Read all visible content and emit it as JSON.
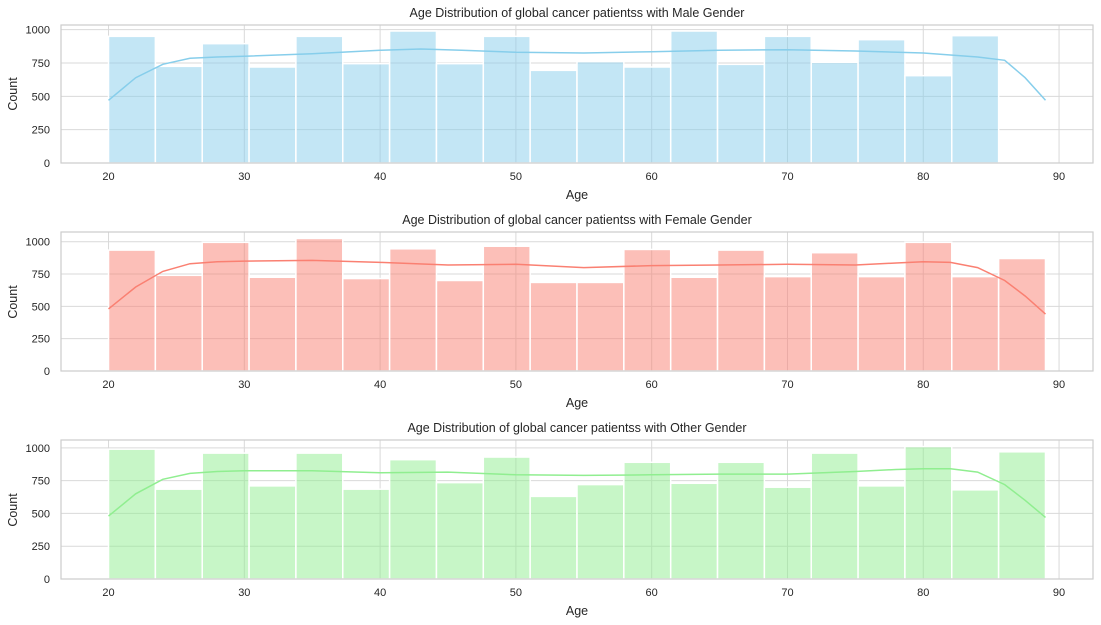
{
  "figure": {
    "background": "#ffffff",
    "grid_color": "#d9d9d9",
    "spine_color": "#cccccc"
  },
  "chart_data": [
    {
      "type": "bar",
      "kind": "histogram with kde",
      "title": "Age Distribution of global cancer patientss with Male Gender",
      "xlabel": "Age",
      "ylabel": "Count",
      "xlim": [
        16.5,
        92.5
      ],
      "ylim": [
        0,
        1035
      ],
      "xticks": [
        20,
        30,
        40,
        50,
        60,
        70,
        80,
        90
      ],
      "yticks": [
        0,
        250,
        500,
        750,
        1000
      ],
      "grid": true,
      "bin_start": 20,
      "bin_width": 3.45,
      "values": [
        950,
        725,
        895,
        720,
        950,
        745,
        990,
        745,
        950,
        695,
        760,
        720,
        990,
        740,
        950,
        755,
        925,
        655,
        955
      ],
      "kde": {
        "x": [
          20,
          22,
          24,
          26,
          28,
          30,
          35,
          40,
          43,
          46,
          50,
          55,
          60,
          65,
          70,
          75,
          80,
          82,
          84,
          86,
          87.5,
          89
        ],
        "y": [
          470,
          640,
          740,
          785,
          795,
          800,
          820,
          845,
          855,
          845,
          830,
          825,
          835,
          845,
          850,
          840,
          825,
          810,
          795,
          770,
          640,
          470
        ]
      },
      "colors": {
        "bar": "#87ceeb",
        "kde": "#87ceeb"
      }
    },
    {
      "type": "bar",
      "kind": "histogram with kde",
      "title": "Age Distribution of global cancer patientss with Female Gender",
      "xlabel": "Age",
      "ylabel": "Count",
      "xlim": [
        16.5,
        92.5
      ],
      "ylim": [
        0,
        1075
      ],
      "xticks": [
        20,
        30,
        40,
        50,
        60,
        70,
        80,
        90
      ],
      "yticks": [
        0,
        250,
        500,
        750,
        1000
      ],
      "grid": true,
      "bin_start": 20,
      "bin_width": 3.45,
      "values": [
        935,
        740,
        995,
        725,
        1025,
        715,
        945,
        700,
        965,
        685,
        685,
        940,
        725,
        935,
        730,
        915,
        730,
        995,
        730,
        870
      ],
      "kde": {
        "x": [
          20,
          22,
          24,
          26,
          28,
          30,
          35,
          40,
          45,
          50,
          55,
          60,
          65,
          70,
          75,
          78,
          80,
          82,
          84,
          86,
          87.5,
          89
        ],
        "y": [
          480,
          650,
          770,
          830,
          845,
          850,
          855,
          840,
          820,
          825,
          800,
          815,
          820,
          825,
          820,
          835,
          845,
          840,
          800,
          700,
          580,
          440
        ]
      },
      "colors": {
        "bar": "#fa8072",
        "kde": "#fa8072"
      }
    },
    {
      "type": "bar",
      "kind": "histogram with kde",
      "title": "Age Distribution of global cancer patientss with Other Gender",
      "xlabel": "Age",
      "ylabel": "Count",
      "xlim": [
        16.5,
        92.5
      ],
      "ylim": [
        0,
        1060
      ],
      "xticks": [
        20,
        30,
        40,
        50,
        60,
        70,
        80,
        90
      ],
      "yticks": [
        0,
        250,
        500,
        750,
        1000
      ],
      "grid": true,
      "bin_start": 20,
      "bin_width": 3.45,
      "values": [
        990,
        685,
        960,
        710,
        960,
        685,
        910,
        735,
        930,
        630,
        720,
        890,
        730,
        890,
        700,
        960,
        710,
        1010,
        680,
        970
      ],
      "kde": {
        "x": [
          20,
          22,
          24,
          26,
          28,
          30,
          35,
          40,
          45,
          50,
          55,
          60,
          65,
          70,
          75,
          78,
          80,
          82,
          84,
          86,
          87.5,
          89
        ],
        "y": [
          480,
          650,
          760,
          805,
          820,
          825,
          825,
          810,
          815,
          795,
          790,
          795,
          800,
          800,
          820,
          835,
          840,
          840,
          815,
          720,
          600,
          470
        ]
      },
      "colors": {
        "bar": "#90ee90",
        "kde": "#90ee90"
      }
    }
  ]
}
